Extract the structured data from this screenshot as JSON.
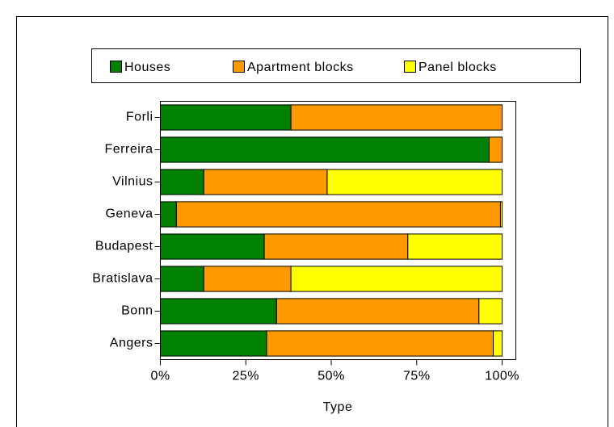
{
  "chart_data": {
    "type": "stacked_barh",
    "xlabel": "Type",
    "categories": [
      "Forli",
      "Ferreira",
      "Vilnius",
      "Geneva",
      "Budapest",
      "Bratislava",
      "Bonn",
      "Angers"
    ],
    "series": [
      {
        "name": "Houses",
        "color": "#008000",
        "values": [
          38.2,
          96.2,
          12.7,
          4.7,
          30.4,
          12.7,
          34.0,
          31.1
        ]
      },
      {
        "name": "Apartment blocks",
        "color": "#ff9900",
        "values": [
          61.8,
          3.8,
          36.1,
          94.8,
          42.0,
          25.5,
          59.2,
          66.3
        ]
      },
      {
        "name": "Panel blocks",
        "color": "#ffff00",
        "values": [
          0,
          0,
          51.2,
          0.5,
          27.6,
          61.8,
          6.8,
          2.6
        ]
      }
    ],
    "xlim": [
      0,
      104
    ],
    "xticks": [
      {
        "value": 0,
        "label": "0%"
      },
      {
        "value": 25,
        "label": "25%"
      },
      {
        "value": 50,
        "label": "50%"
      },
      {
        "value": 75,
        "label": "75%"
      },
      {
        "value": 100,
        "label": "100%"
      }
    ],
    "legend": "top"
  }
}
